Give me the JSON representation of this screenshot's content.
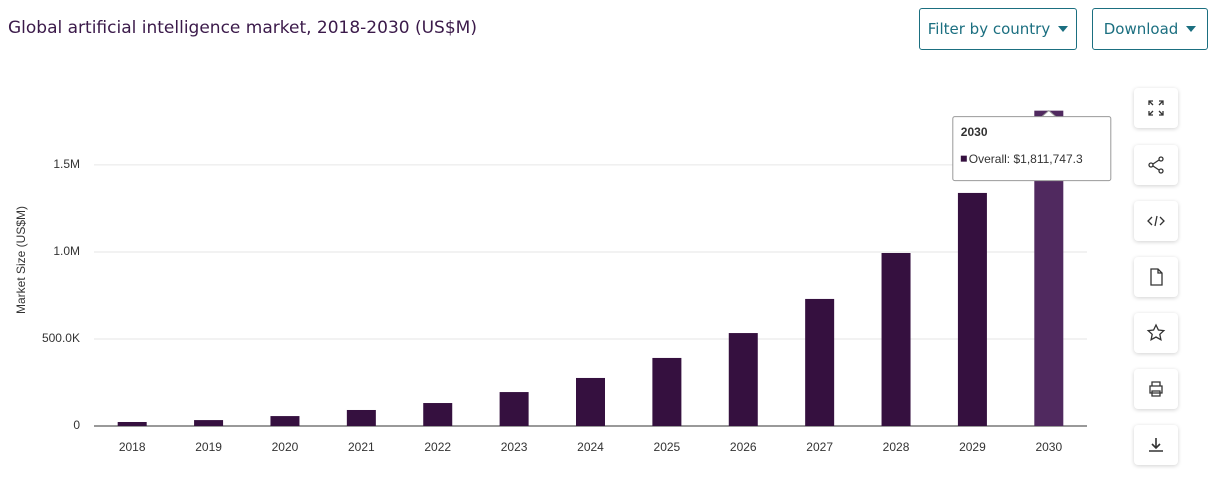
{
  "page": {
    "buttons": [
      "Filter by country",
      "Download"
    ]
  },
  "chart_data": {
    "type": "bar",
    "title": "Global artificial intelligence market, 2018-2030 (US$M)",
    "y_label": "Market Size (US$M)",
    "categories": [
      "2018",
      "2019",
      "2020",
      "2021",
      "2022",
      "2023",
      "2024",
      "2025",
      "2026",
      "2027",
      "2028",
      "2029",
      "2030"
    ],
    "values": [
      23000,
      34000,
      57000,
      92000,
      132000,
      195000,
      276000,
      391000,
      534000,
      730000,
      994000,
      1339000,
      1811747.3
    ],
    "value_labels": [
      null,
      null,
      null,
      null,
      null,
      null,
      null,
      null,
      null,
      null,
      null,
      null,
      "Overall: $1,811,747.3"
    ],
    "color": "#35103f",
    "highlight_color": "#50295f",
    "highlight_index": 12,
    "ylim": [
      0,
      1850000
    ],
    "yticks": [
      0,
      {
        "value": 500000,
        "label": "500.0K"
      },
      {
        "value": 1000000,
        "label": "1.0M"
      },
      {
        "value": 1500000,
        "label": "1.5M"
      }
    ],
    "grid": true
  }
}
